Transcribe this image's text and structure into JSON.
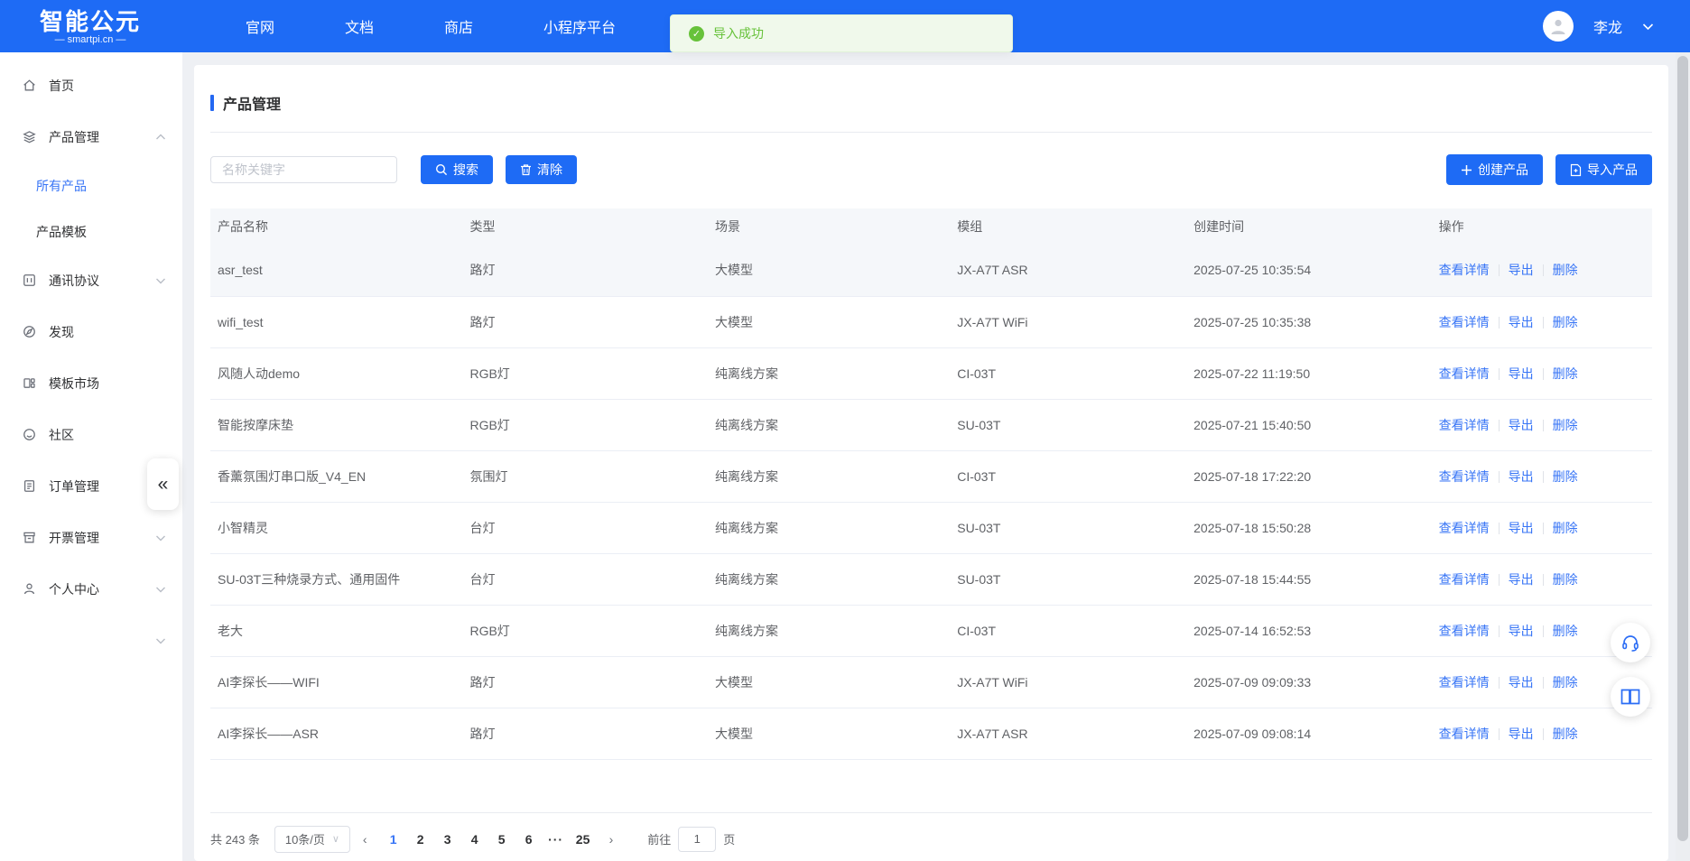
{
  "header": {
    "logo_title": "智能公元",
    "logo_subtitle": "— smartpi.cn —",
    "nav": [
      "官网",
      "文档",
      "商店",
      "小程序平台"
    ],
    "user_name": "李龙"
  },
  "toast": {
    "text": "导入成功"
  },
  "sidebar": {
    "items": [
      {
        "label": "首页",
        "icon": "home-icon",
        "type": "top"
      },
      {
        "label": "产品管理",
        "icon": "layers-icon",
        "type": "top",
        "chevron": "up"
      },
      {
        "label": "所有产品",
        "type": "sub",
        "active": true
      },
      {
        "label": "产品模板",
        "type": "sub"
      },
      {
        "label": "通讯协议",
        "icon": "protocol-icon",
        "type": "top",
        "chevron": "down"
      },
      {
        "label": "发现",
        "icon": "compass-icon",
        "type": "top"
      },
      {
        "label": "模板市场",
        "icon": "template-icon",
        "type": "top"
      },
      {
        "label": "社区",
        "icon": "community-icon",
        "type": "top"
      },
      {
        "label": "订单管理",
        "icon": "order-icon",
        "type": "top",
        "chevron": "down"
      },
      {
        "label": "开票管理",
        "icon": "invoice-icon",
        "type": "top",
        "chevron": "down"
      },
      {
        "label": "个人中心",
        "icon": "user-icon",
        "type": "top",
        "chevron": "down"
      },
      {
        "label": "",
        "type": "top",
        "chevron": "down"
      }
    ]
  },
  "main": {
    "title": "产品管理",
    "search_placeholder": "名称关键字",
    "search_button": "搜索",
    "clear_button": "清除",
    "create_button": "创建产品",
    "import_button": "导入产品",
    "table": {
      "columns": [
        "产品名称",
        "类型",
        "场景",
        "模组",
        "创建时间",
        "操作"
      ],
      "action_labels": [
        "查看详情",
        "导出",
        "删除"
      ],
      "rows": [
        {
          "name": "asr_test",
          "type": "路灯",
          "scene": "大模型",
          "module": "JX-A7T ASR",
          "created": "2025-07-25 10:35:54",
          "highlighted": true
        },
        {
          "name": "wifi_test",
          "type": "路灯",
          "scene": "大模型",
          "module": "JX-A7T WiFi",
          "created": "2025-07-25 10:35:38"
        },
        {
          "name": "风随人动demo",
          "type": "RGB灯",
          "scene": "纯离线方案",
          "module": "CI-03T",
          "created": "2025-07-22 11:19:50"
        },
        {
          "name": "智能按摩床垫",
          "type": "RGB灯",
          "scene": "纯离线方案",
          "module": "SU-03T",
          "created": "2025-07-21 15:40:50"
        },
        {
          "name": "香薰氛围灯串口版_V4_EN",
          "type": "氛围灯",
          "scene": "纯离线方案",
          "module": "CI-03T",
          "created": "2025-07-18 17:22:20"
        },
        {
          "name": "小智精灵",
          "type": "台灯",
          "scene": "纯离线方案",
          "module": "SU-03T",
          "created": "2025-07-18 15:50:28"
        },
        {
          "name": "SU-03T三种烧录方式、通用固件",
          "type": "台灯",
          "scene": "纯离线方案",
          "module": "SU-03T",
          "created": "2025-07-18 15:44:55"
        },
        {
          "name": "老大",
          "type": "RGB灯",
          "scene": "纯离线方案",
          "module": "CI-03T",
          "created": "2025-07-14 16:52:53"
        },
        {
          "name": "AI李探长——WIFI",
          "type": "路灯",
          "scene": "大模型",
          "module": "JX-A7T WiFi",
          "created": "2025-07-09 09:09:33"
        },
        {
          "name": "AI李探长——ASR",
          "type": "路灯",
          "scene": "大模型",
          "module": "JX-A7T ASR",
          "created": "2025-07-09 09:08:14"
        }
      ]
    },
    "pagination": {
      "total_text": "共 243 条",
      "page_size": "10条/页",
      "pages": [
        "1",
        "2",
        "3",
        "4",
        "5",
        "6",
        "···",
        "25"
      ],
      "active_page": "1",
      "goto_label": "前往",
      "goto_value": "1",
      "goto_suffix": "页"
    }
  },
  "colors": {
    "header_bg": "#1e6bf5",
    "accent_link": "#3875f6",
    "toast_green": "#67c23a",
    "table_header_bg": "#f5f7fa"
  }
}
